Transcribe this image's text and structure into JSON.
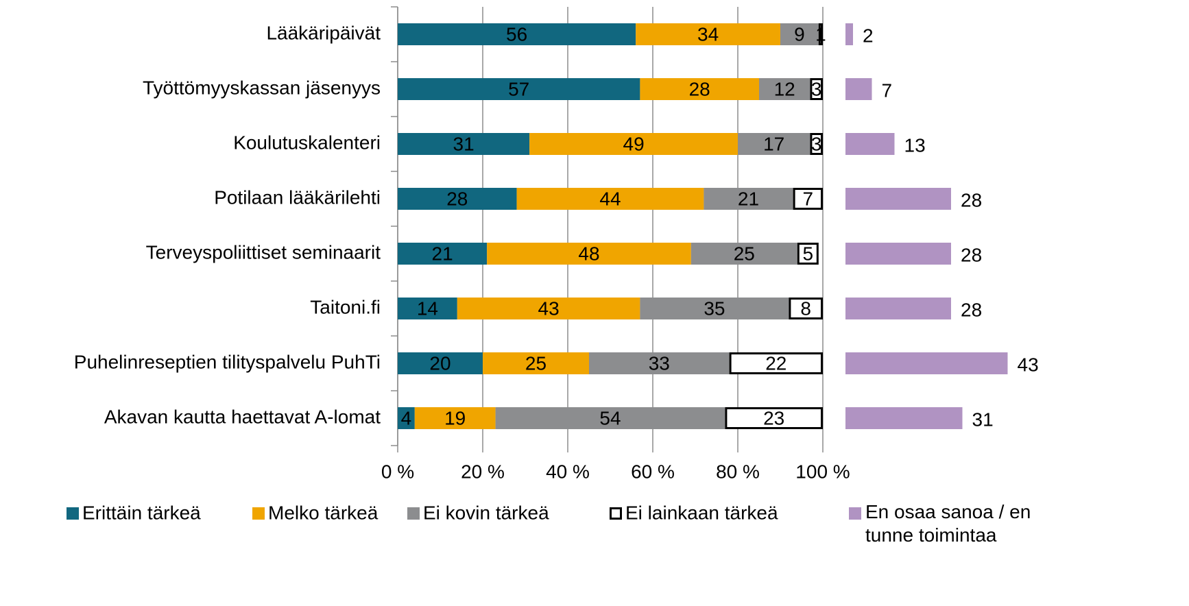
{
  "chart_data": [
    {
      "type": "bar",
      "orientation": "horizontal",
      "stacked": true,
      "categories": [
        "Lääkäripäivät",
        "Työttömyyskassan jäsenyys",
        "Koulutuskalenteri",
        "Potilaan lääkärilehti",
        "Terveyspoliittiset seminaarit",
        "Taitoni.fi",
        "Puhelinreseptien tilityspalvelu PuhTi",
        "Akavan kautta haettavat A-lomat"
      ],
      "series": [
        {
          "name": "Erittäin tärkeä",
          "color": "#11677f",
          "values": [
            56,
            57,
            31,
            28,
            21,
            14,
            20,
            4
          ]
        },
        {
          "name": "Melko tärkeä",
          "color": "#f0a500",
          "values": [
            34,
            28,
            49,
            44,
            48,
            43,
            25,
            19
          ]
        },
        {
          "name": "Ei kovin tärkeä",
          "color": "#8c8d8f",
          "values": [
            9,
            12,
            17,
            21,
            25,
            35,
            33,
            54
          ]
        },
        {
          "name": "Ei lainkaan tärkeä",
          "color": "#ffffff",
          "values": [
            1,
            3,
            3,
            7,
            5,
            8,
            22,
            23
          ]
        }
      ],
      "xlim": [
        0,
        100
      ],
      "xticks": [
        {
          "value": 0,
          "label": "0 %"
        },
        {
          "value": 20,
          "label": "20 %"
        },
        {
          "value": 40,
          "label": "40 %"
        },
        {
          "value": 60,
          "label": "60 %"
        },
        {
          "value": 80,
          "label": "80 %"
        },
        {
          "value": 100,
          "label": "100 %"
        }
      ],
      "grid": true
    },
    {
      "type": "bar",
      "orientation": "horizontal",
      "series": [
        {
          "name": "En osaa sanoa / en tunne toimintaa",
          "color": "#b093c2",
          "values": [
            2,
            7,
            13,
            28,
            28,
            28,
            43,
            31
          ]
        }
      ]
    }
  ]
}
